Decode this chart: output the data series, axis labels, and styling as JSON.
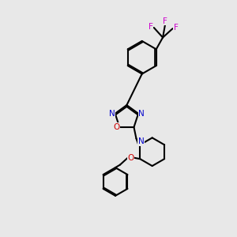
{
  "bg_color": "#e8e8e8",
  "bond_color": "#000000",
  "nitrogen_color": "#0000cc",
  "oxygen_color": "#cc0000",
  "fluorine_color": "#cc00cc",
  "line_width": 1.5,
  "figsize": [
    3.0,
    3.0
  ],
  "dpi": 100,
  "xlim": [
    0,
    10
  ],
  "ylim": [
    0,
    10
  ]
}
